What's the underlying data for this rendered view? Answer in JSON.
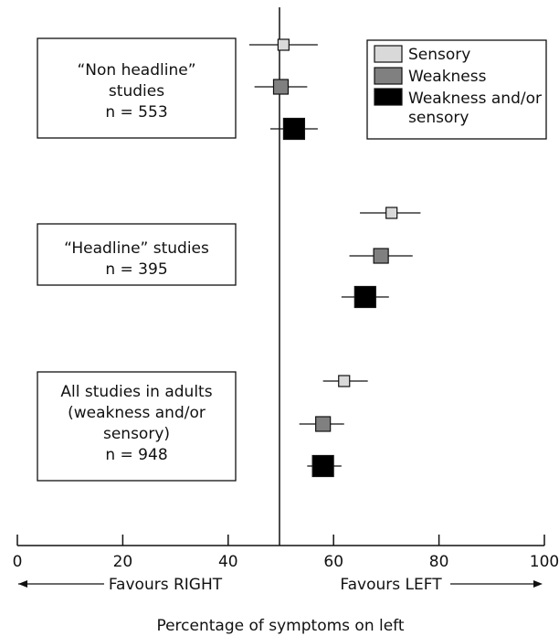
{
  "chart_data": {
    "type": "forest",
    "xlabel": "Percentage of symptoms on left",
    "xlim": [
      0,
      100
    ],
    "xticks": [
      0,
      20,
      40,
      60,
      80,
      100
    ],
    "reference_line": 50,
    "direction_labels": {
      "left": "Favours RIGHT",
      "right": "Favours LEFT"
    },
    "legend": {
      "position": "top-right",
      "items": [
        {
          "name": "Sensory",
          "color": "#d9d9d9"
        },
        {
          "name": "Weakness",
          "color": "#808080"
        },
        {
          "name": "Weakness and/or sensory",
          "color": "#000000"
        }
      ]
    },
    "groups": [
      {
        "label_lines": [
          "“Non headline”",
          "studies",
          "n = 553"
        ],
        "estimates": [
          {
            "series": "Sensory",
            "value": 50.5,
            "ci": [
              44,
              57
            ]
          },
          {
            "series": "Weakness",
            "value": 50,
            "ci": [
              45,
              55
            ]
          },
          {
            "series": "Weakness and/or sensory",
            "value": 52.5,
            "ci": [
              48,
              57
            ]
          }
        ]
      },
      {
        "label_lines": [
          "“Headline” studies",
          "n = 395"
        ],
        "estimates": [
          {
            "series": "Sensory",
            "value": 71,
            "ci": [
              65,
              76.5
            ]
          },
          {
            "series": "Weakness",
            "value": 69,
            "ci": [
              63,
              75
            ]
          },
          {
            "series": "Weakness and/or sensory",
            "value": 66,
            "ci": [
              61.5,
              70.5
            ]
          }
        ]
      },
      {
        "label_lines": [
          "All studies in adults",
          "(weakness and/or",
          "sensory)",
          "n = 948"
        ],
        "estimates": [
          {
            "series": "Sensory",
            "value": 62,
            "ci": [
              58,
              66.5
            ]
          },
          {
            "series": "Weakness",
            "value": 58,
            "ci": [
              53.5,
              62
            ]
          },
          {
            "series": "Weakness and/or sensory",
            "value": 58,
            "ci": [
              55,
              61.5
            ]
          }
        ]
      }
    ]
  }
}
